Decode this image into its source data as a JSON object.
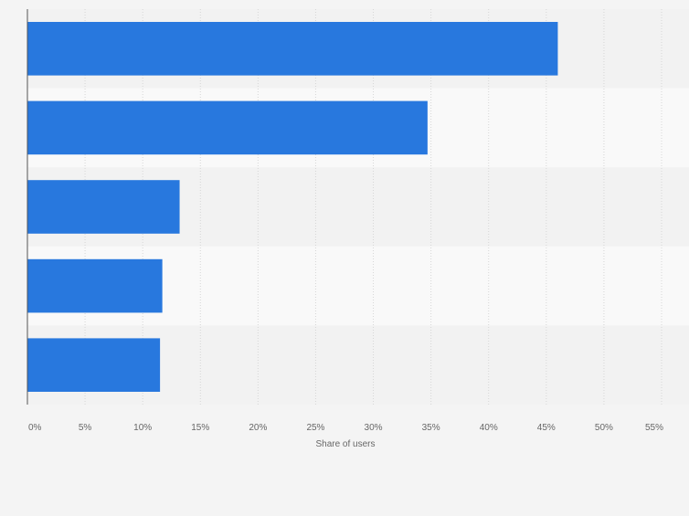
{
  "chart_data": {
    "type": "bar",
    "orientation": "horizontal",
    "values": [
      46.0,
      34.7,
      13.2,
      11.7,
      11.5
    ],
    "xlabel": "Share of users",
    "xlim": [
      0,
      55
    ],
    "x_ticks": [
      "0%",
      "5%",
      "10%",
      "15%",
      "20%",
      "25%",
      "30%",
      "35%",
      "40%",
      "45%",
      "50%",
      "55%"
    ],
    "grid": true,
    "legend": "none",
    "colors": {
      "bar": "#2878de",
      "band_dark": "#f2f2f2",
      "band_light": "#f9f9f9",
      "grid": "#d6d6d6",
      "axis": "#555555",
      "text": "#666666"
    }
  }
}
